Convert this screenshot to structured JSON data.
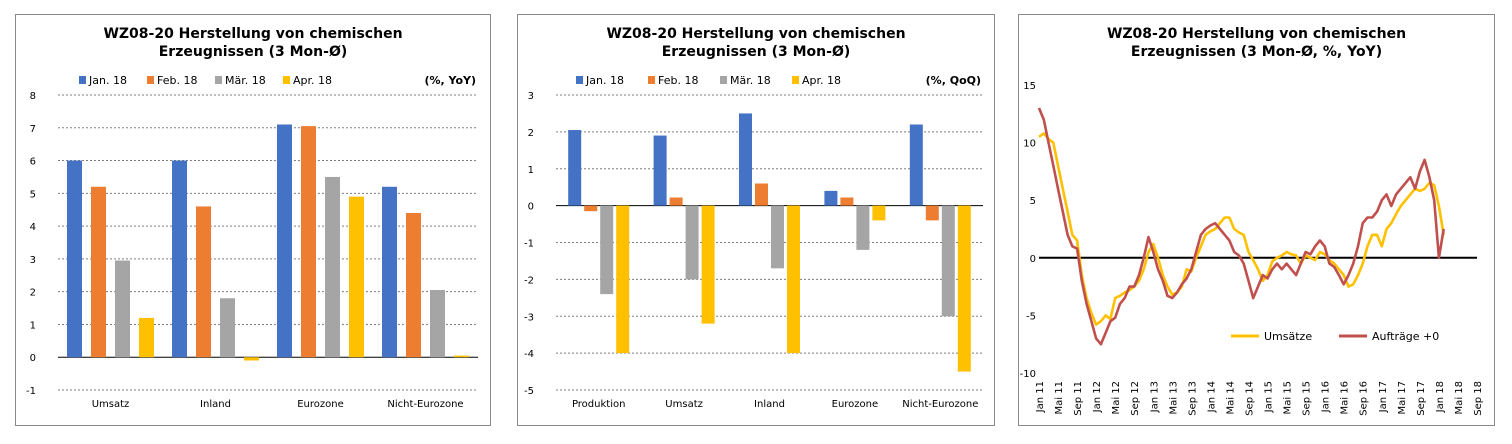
{
  "colors": {
    "jan": "#4472C4",
    "feb": "#ED7D31",
    "mar": "#A5A5A5",
    "apr": "#FFC000",
    "umsaetze": "#FFC000",
    "auftraege": "#C0504D",
    "grid": "#808080"
  },
  "chart_data": [
    {
      "type": "bar",
      "title_line1": "WZ08-20 Herstellung von chemischen",
      "title_line2": "Erzeugnissen (3 Mon-Ø)",
      "unit": "(%, YoY)",
      "categories": [
        "Umsatz",
        "Inland",
        "Eurozone",
        "Nicht-Eurozone"
      ],
      "series": [
        {
          "name": "Jan. 18",
          "color_key": "jan",
          "values": [
            6.0,
            6.0,
            7.1,
            5.2
          ]
        },
        {
          "name": "Feb. 18",
          "color_key": "feb",
          "values": [
            5.2,
            4.6,
            7.05,
            4.4
          ]
        },
        {
          "name": "Mär. 18",
          "color_key": "mar",
          "values": [
            2.95,
            1.8,
            5.5,
            2.05
          ]
        },
        {
          "name": "Apr. 18",
          "color_key": "apr",
          "values": [
            1.2,
            -0.1,
            4.9,
            0.05
          ]
        }
      ],
      "ylim": [
        -1,
        8
      ],
      "yticks": [
        -1,
        0,
        1,
        2,
        3,
        4,
        5,
        6,
        7,
        8
      ]
    },
    {
      "type": "bar",
      "title_line1": "WZ08-20 Herstellung von chemischen",
      "title_line2": "Erzeugnissen (3 Mon-Ø)",
      "unit": "(%, QoQ)",
      "categories": [
        "Produktion",
        "Umsatz",
        "Inland",
        "Eurozone",
        "Nicht-Eurozone"
      ],
      "series": [
        {
          "name": "Jan. 18",
          "color_key": "jan",
          "values": [
            2.05,
            1.9,
            2.5,
            0.4,
            2.2
          ]
        },
        {
          "name": "Feb. 18",
          "color_key": "feb",
          "values": [
            -0.15,
            0.22,
            0.6,
            0.22,
            -0.4
          ]
        },
        {
          "name": "Mär. 18",
          "color_key": "mar",
          "values": [
            -2.4,
            -2.0,
            -1.7,
            -1.2,
            -3.0
          ]
        },
        {
          "name": "Apr. 18",
          "color_key": "apr",
          "values": [
            -4.0,
            -3.2,
            -4.0,
            -0.4,
            -4.5
          ]
        }
      ],
      "ylim": [
        -5,
        3
      ],
      "yticks": [
        -5,
        -4,
        -3,
        -2,
        -1,
        0,
        1,
        2,
        3
      ]
    },
    {
      "type": "line",
      "title_line1": "WZ08-20 Herstellung von chemischen",
      "title_line2": "Erzeugnissen (3 Mon-Ø, %, YoY)",
      "x_start_index": 0,
      "x_end_index": 92,
      "xticks": [
        {
          "index": 0,
          "label": "Jan 11"
        },
        {
          "index": 4,
          "label": "Mai 11"
        },
        {
          "index": 8,
          "label": "Sep 11"
        },
        {
          "index": 12,
          "label": "Jan 12"
        },
        {
          "index": 16,
          "label": "Mai 12"
        },
        {
          "index": 20,
          "label": "Sep 12"
        },
        {
          "index": 24,
          "label": "Jan 13"
        },
        {
          "index": 28,
          "label": "Mai 13"
        },
        {
          "index": 32,
          "label": "Sep 13"
        },
        {
          "index": 36,
          "label": "Jan 14"
        },
        {
          "index": 40,
          "label": "Mai 14"
        },
        {
          "index": 44,
          "label": "Sep 14"
        },
        {
          "index": 48,
          "label": "Jan 15"
        },
        {
          "index": 52,
          "label": "Mai 15"
        },
        {
          "index": 56,
          "label": "Sep 15"
        },
        {
          "index": 60,
          "label": "Jan 16"
        },
        {
          "index": 64,
          "label": "Mai 16"
        },
        {
          "index": 68,
          "label": "Sep 16"
        },
        {
          "index": 72,
          "label": "Jan 17"
        },
        {
          "index": 76,
          "label": "Mai 17"
        },
        {
          "index": 80,
          "label": "Sep 17"
        },
        {
          "index": 84,
          "label": "Jan 18"
        },
        {
          "index": 88,
          "label": "Mai 18"
        },
        {
          "index": 92,
          "label": "Sep 18"
        }
      ],
      "ylim": [
        -10,
        15
      ],
      "yticks": [
        -10,
        -5,
        0,
        5,
        10,
        15
      ],
      "series": [
        {
          "name": "Umsätze",
          "color_key": "umsaetze",
          "values": [
            10.5,
            10.8,
            10.3,
            10.0,
            8.0,
            6.0,
            4.0,
            2.0,
            1.5,
            -1.5,
            -3.5,
            -4.8,
            -5.8,
            -5.5,
            -5.0,
            -5.3,
            -3.5,
            -3.3,
            -3.0,
            -2.8,
            -2.5,
            -2.0,
            -1.0,
            0.5,
            1.2,
            0.0,
            -1.5,
            -2.5,
            -3.2,
            -3.0,
            -2.5,
            -1.0,
            -1.2,
            0.0,
            1.0,
            2.0,
            2.3,
            2.5,
            3.0,
            3.5,
            3.5,
            2.5,
            2.2,
            2.0,
            0.5,
            -0.2,
            -1.0,
            -2.0,
            -1.5,
            -0.3,
            0.0,
            0.2,
            0.5,
            0.3,
            0.2,
            -0.5,
            0.2,
            0.0,
            -0.2,
            0.5,
            0.3,
            -0.2,
            -0.5,
            -1.0,
            -1.5,
            -2.5,
            -2.3,
            -1.5,
            -0.5,
            1.0,
            2.0,
            2.0,
            1.0,
            2.5,
            3.0,
            3.8,
            4.5,
            5.0,
            5.5,
            6.0,
            5.8,
            6.0,
            6.5,
            6.3,
            4.5,
            2.0
          ]
        },
        {
          "name": "Aufträge +0",
          "color_key": "auftraege",
          "values": [
            13.0,
            12.0,
            10.0,
            8.0,
            6.0,
            4.0,
            2.0,
            1.0,
            0.8,
            -2.0,
            -4.0,
            -5.5,
            -7.0,
            -7.5,
            -6.5,
            -5.5,
            -5.2,
            -4.0,
            -3.5,
            -2.5,
            -2.5,
            -1.5,
            0.0,
            1.8,
            0.5,
            -1.0,
            -2.0,
            -3.3,
            -3.5,
            -3.0,
            -2.3,
            -1.8,
            -1.0,
            0.5,
            2.0,
            2.5,
            2.8,
            3.0,
            2.5,
            2.0,
            1.5,
            0.5,
            0.2,
            -0.5,
            -2.0,
            -3.5,
            -2.5,
            -1.5,
            -1.8,
            -1.0,
            -0.5,
            -1.0,
            -0.5,
            -1.0,
            -1.5,
            -0.5,
            0.5,
            0.3,
            1.0,
            1.5,
            1.0,
            -0.5,
            -0.8,
            -1.5,
            -2.3,
            -1.5,
            -0.5,
            1.0,
            3.0,
            3.5,
            3.5,
            4.0,
            5.0,
            5.5,
            4.5,
            5.5,
            6.0,
            6.5,
            7.0,
            6.0,
            7.5,
            8.5,
            7.0,
            5.0,
            0.0,
            2.5
          ]
        }
      ]
    }
  ]
}
